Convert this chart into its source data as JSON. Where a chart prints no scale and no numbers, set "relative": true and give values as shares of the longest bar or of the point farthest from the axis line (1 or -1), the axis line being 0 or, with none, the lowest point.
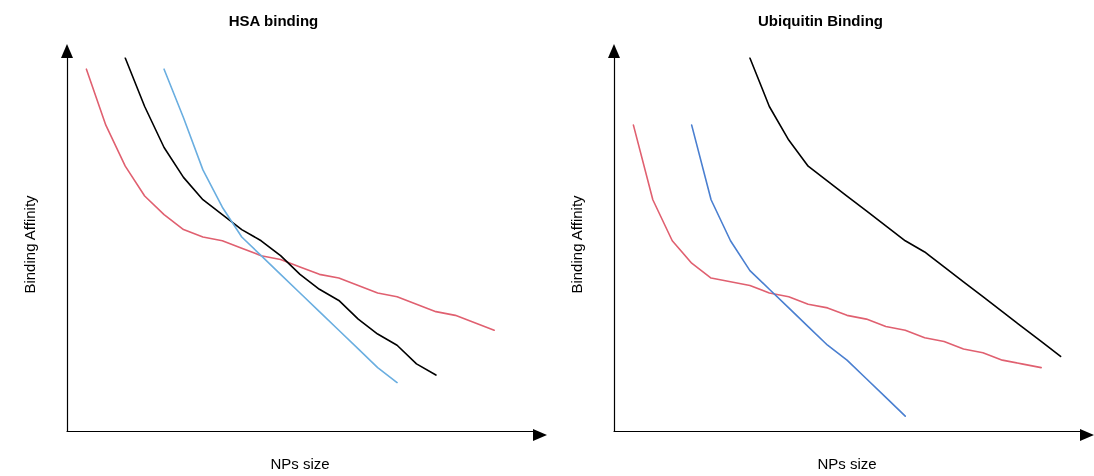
{
  "chart_data": [
    {
      "type": "line",
      "title": "HSA binding",
      "xlabel": "NPs size",
      "ylabel": "Binding Affinity",
      "relative": true,
      "marker": "none",
      "line_style": "solid",
      "categories": [
        null,
        null,
        null,
        null,
        null,
        null,
        null,
        null,
        null,
        null,
        null,
        null,
        null,
        null,
        null,
        null,
        null,
        null,
        null,
        null,
        null,
        null,
        null,
        null,
        null
      ],
      "series": [
        {
          "color": "#e06070",
          "values": [
            null,
            0.97,
            0.82,
            0.71,
            0.63,
            0.58,
            0.54,
            0.52,
            0.51,
            0.49,
            0.47,
            0.46,
            0.44,
            0.42,
            0.41,
            0.39,
            0.37,
            0.36,
            0.34,
            0.32,
            0.31,
            0.29,
            0.27,
            null,
            null
          ]
        },
        {
          "color": "#000000",
          "values": [
            null,
            null,
            null,
            1,
            0.87,
            0.76,
            0.68,
            0.62,
            0.58,
            0.54,
            0.51,
            0.47,
            0.42,
            0.38,
            0.35,
            0.3,
            0.26,
            0.23,
            0.18,
            0.15,
            null,
            null,
            null,
            null,
            null
          ]
        },
        {
          "color": "#6aaee0",
          "values": [
            null,
            null,
            null,
            null,
            null,
            0.97,
            0.84,
            0.7,
            0.6,
            0.52,
            0.47,
            0.42,
            0.37,
            0.32,
            0.27,
            0.22,
            0.17,
            0.13,
            null,
            null,
            null,
            null,
            null,
            null,
            null
          ]
        }
      ]
    },
    {
      "type": "line",
      "title": "Ubiquitin Binding",
      "xlabel": "NPs size",
      "ylabel": "Binding Affinity",
      "relative": true,
      "marker": "none",
      "line_style": "solid",
      "categories": [
        null,
        null,
        null,
        null,
        null,
        null,
        null,
        null,
        null,
        null,
        null,
        null,
        null,
        null,
        null,
        null,
        null,
        null,
        null,
        null,
        null,
        null,
        null,
        null,
        null
      ],
      "series": [
        {
          "color": "#e06070",
          "values": [
            null,
            0.82,
            0.62,
            0.51,
            0.45,
            0.41,
            0.4,
            0.39,
            0.37,
            0.36,
            0.34,
            0.33,
            0.31,
            0.3,
            0.28,
            0.27,
            0.25,
            0.24,
            0.22,
            0.21,
            0.19,
            0.18,
            0.17,
            null,
            null
          ]
        },
        {
          "color": "#4a7fd0",
          "values": [
            null,
            null,
            null,
            null,
            0.82,
            0.62,
            0.51,
            0.43,
            0.38,
            0.33,
            0.28,
            0.23,
            0.19,
            0.14,
            0.09,
            0.04,
            null,
            null,
            null,
            null,
            null,
            null,
            null,
            null,
            null
          ]
        },
        {
          "color": "#000000",
          "values": [
            null,
            null,
            null,
            null,
            null,
            null,
            null,
            1,
            0.87,
            0.78,
            0.71,
            0.67,
            0.63,
            0.59,
            0.55,
            0.51,
            0.48,
            0.44,
            0.4,
            0.36,
            0.32,
            0.28,
            0.24,
            0.2,
            null
          ]
        }
      ]
    }
  ]
}
